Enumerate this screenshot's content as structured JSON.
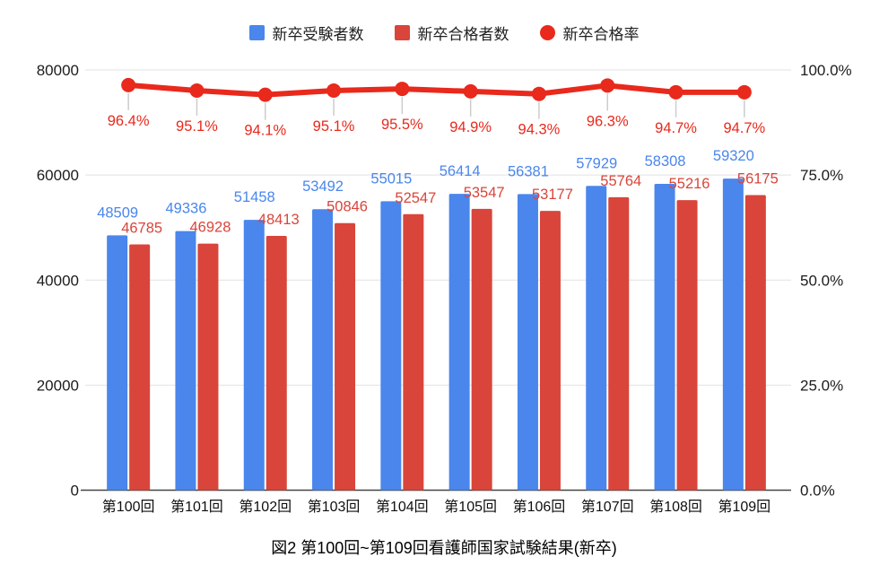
{
  "caption": "図2 第100回~第109回看護師国家試験結果(新卒)",
  "colors": {
    "examinees_blue": "#4A86EC",
    "passers_red": "#D9453A",
    "rate_line_red": "#E8291C",
    "gridline": "#e2e2e2",
    "axis_line": "#444444",
    "leader_line": "#cccccc",
    "background": "#ffffff"
  },
  "legend": {
    "items": [
      {
        "label": "新卒受験者数",
        "marker": "square",
        "color": "#4A86EC"
      },
      {
        "label": "新卒合格者数",
        "marker": "square",
        "color": "#D9453A"
      },
      {
        "label": "新卒合格率",
        "marker": "circle",
        "color": "#E8291C"
      }
    ]
  },
  "chart_data": {
    "type": "bar",
    "subtype": "combo-bar-line",
    "title": "図2 第100回~第109回看護師国家試験結果(新卒)",
    "legend_position": "top",
    "grid": true,
    "show_data_labels": true,
    "categories": [
      "第100回",
      "第101回",
      "第102回",
      "第103回",
      "第104回",
      "第105回",
      "第106回",
      "第107回",
      "第108回",
      "第109回"
    ],
    "series": [
      {
        "name": "新卒受験者数",
        "type": "bar",
        "axis": "left",
        "color": "#4A86EC",
        "values": [
          48509,
          49336,
          51458,
          53492,
          55015,
          56414,
          56381,
          57929,
          58308,
          59320
        ]
      },
      {
        "name": "新卒合格者数",
        "type": "bar",
        "axis": "left",
        "color": "#D9453A",
        "values": [
          46785,
          46928,
          48413,
          50846,
          52547,
          53547,
          53177,
          55764,
          55216,
          56175
        ]
      },
      {
        "name": "新卒合格率",
        "type": "line",
        "axis": "right",
        "color": "#E8291C",
        "unit": "%",
        "values": [
          96.4,
          95.1,
          94.1,
          95.1,
          95.5,
          94.9,
          94.3,
          96.3,
          94.7,
          94.7
        ],
        "labels": [
          "96.4%",
          "95.1%",
          "94.1%",
          "95.1%",
          "95.5%",
          "94.9%",
          "94.3%",
          "96.3%",
          "94.7%",
          "94.7%"
        ]
      }
    ],
    "left_axis": {
      "min": 0,
      "max": 80000,
      "ticks": [
        {
          "value": 0,
          "label": "0"
        },
        {
          "value": 20000,
          "label": "20000"
        },
        {
          "value": 40000,
          "label": "40000"
        },
        {
          "value": 60000,
          "label": "60000"
        },
        {
          "value": 80000,
          "label": "80000"
        }
      ]
    },
    "right_axis": {
      "min": 0,
      "max": 100,
      "ticks": [
        {
          "value": 0,
          "label": "0.0%"
        },
        {
          "value": 25,
          "label": "25.0%"
        },
        {
          "value": 50,
          "label": "50.0%"
        },
        {
          "value": 75,
          "label": "75.0%"
        },
        {
          "value": 100,
          "label": "100.0%"
        }
      ]
    }
  }
}
